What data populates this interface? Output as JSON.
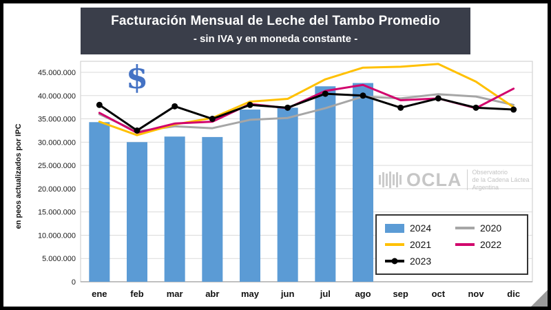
{
  "chart": {
    "title": "Facturación Mensual de Leche del Tambo Promedio",
    "subtitle": "- sin IVA y en moneda constante -",
    "ylabel": "en peos actualizados por IPC",
    "dollar_icon": "$"
  },
  "watermark": {
    "name": "OCLA",
    "desc_lines": [
      "Observatorio",
      "de la Cadena Láctea",
      "Argentina"
    ]
  },
  "colors": {
    "title_background": "#3a3e4a",
    "bar_2024": "#5B9BD5",
    "line_2020": "#A6A6A6",
    "line_2021": "#FFC000",
    "line_2022": "#D1036C",
    "line_2023": "#000000",
    "dollar": "#4472C4"
  },
  "chart_data": {
    "type": "bar",
    "subtype": "combo-bar-line",
    "categories": [
      "ene",
      "feb",
      "mar",
      "abr",
      "may",
      "jun",
      "jul",
      "ago",
      "sep",
      "oct",
      "nov",
      "dic"
    ],
    "ylim": [
      0,
      47000000
    ],
    "yticks": [
      0,
      5000000,
      10000000,
      15000000,
      20000000,
      25000000,
      30000000,
      35000000,
      40000000,
      45000000
    ],
    "ytick_labels": [
      "0",
      "5.000.000",
      "10.000.000",
      "15.000.000",
      "20.000.000",
      "25.000.000",
      "30.000.000",
      "35.000.000",
      "40.000.000",
      "45.000.000"
    ],
    "grid": true,
    "legend_position": "bottom-right",
    "title": "Facturación Mensual de Leche del Tambo Promedio",
    "xlabel": "",
    "ylabel": "en peos actualizados por IPC",
    "series": [
      {
        "name": "2024",
        "type": "bar",
        "color": "#5B9BD5",
        "values": [
          34300000,
          30000000,
          31200000,
          31100000,
          37000000,
          37400000,
          42000000,
          42700000,
          null,
          null,
          null,
          null
        ]
      },
      {
        "name": "2020",
        "type": "line",
        "color": "#A6A6A6",
        "values": [
          36000000,
          32300000,
          33400000,
          33000000,
          34800000,
          35200000,
          37300000,
          39800000,
          39400000,
          40300000,
          39800000,
          38000000
        ]
      },
      {
        "name": "2021",
        "type": "line",
        "color": "#FFC000",
        "values": [
          34400000,
          31500000,
          33800000,
          35200000,
          38700000,
          39300000,
          43500000,
          46000000,
          46200000,
          46800000,
          43000000,
          37500000
        ]
      },
      {
        "name": "2022",
        "type": "line",
        "color": "#D1036C",
        "values": [
          36300000,
          32000000,
          34000000,
          34400000,
          38200000,
          37300000,
          41000000,
          42300000,
          39000000,
          39400000,
          37300000,
          41500000
        ]
      },
      {
        "name": "2023",
        "type": "line",
        "marker": true,
        "color": "#000000",
        "values": [
          38000000,
          32500000,
          37700000,
          35000000,
          38000000,
          37400000,
          40400000,
          40000000,
          37400000,
          39400000,
          37400000,
          37000000
        ]
      }
    ]
  }
}
